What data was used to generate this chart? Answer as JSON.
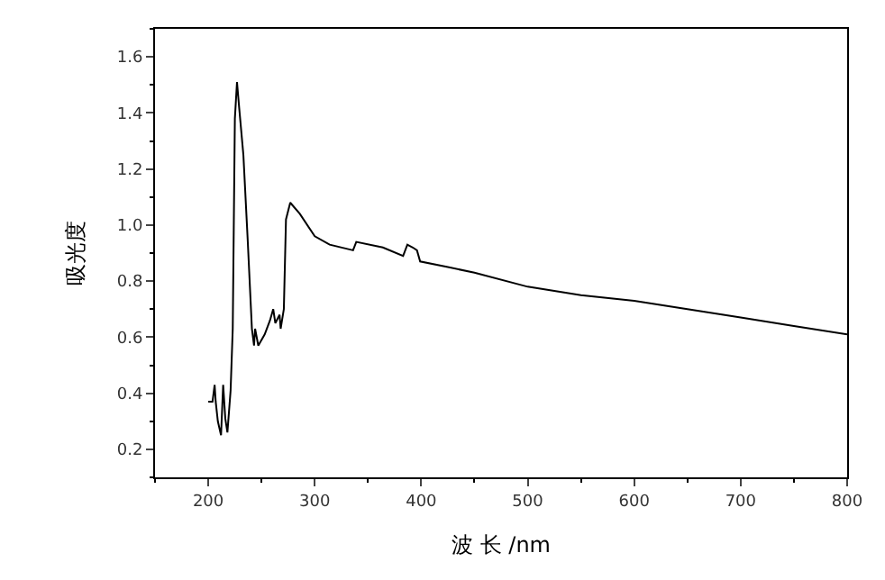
{
  "chart_data": {
    "type": "line",
    "xlabel": "波 长 /nm",
    "ylabel": "吸光度",
    "x": [
      200,
      204,
      206,
      207,
      209,
      212,
      214,
      216,
      218,
      221,
      223,
      225,
      227,
      229,
      233,
      237,
      241,
      243,
      244,
      247,
      253,
      258,
      261,
      263,
      267,
      268,
      271,
      273,
      277,
      286,
      300,
      314,
      336,
      339,
      364,
      383,
      387,
      392,
      396,
      399,
      425,
      450,
      500,
      550,
      600,
      650,
      700,
      750,
      800
    ],
    "series": [
      {
        "color": "#000000",
        "values": [
          0.37,
          0.37,
          0.43,
          0.37,
          0.3,
          0.25,
          0.43,
          0.31,
          0.26,
          0.41,
          0.63,
          1.38,
          1.51,
          1.42,
          1.25,
          0.95,
          0.63,
          0.57,
          0.63,
          0.57,
          0.61,
          0.66,
          0.7,
          0.65,
          0.68,
          0.63,
          0.7,
          1.02,
          1.08,
          1.04,
          0.96,
          0.93,
          0.91,
          0.94,
          0.92,
          0.89,
          0.93,
          0.92,
          0.91,
          0.87,
          0.85,
          0.83,
          0.78,
          0.75,
          0.73,
          0.7,
          0.67,
          0.64,
          0.61
        ]
      }
    ],
    "xlim": [
      150,
      800
    ],
    "xticks": [
      200,
      300,
      400,
      500,
      600,
      700,
      800
    ],
    "ylim": [
      0.1,
      1.7
    ],
    "yticks": [
      0.2,
      0.4,
      0.6,
      0.8,
      {
        "value": 1,
        "label": "1.0"
      },
      1.2,
      1.4,
      1.6
    ],
    "legend": false,
    "marker": "none",
    "line_style": "solid"
  }
}
